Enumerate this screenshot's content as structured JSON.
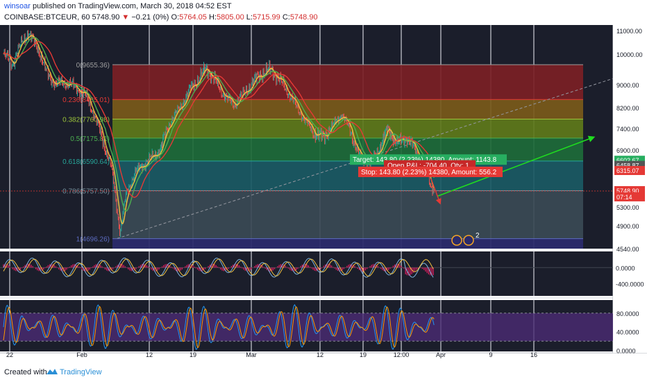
{
  "header": {
    "author": "winsoar",
    "published_text": "published on TradingView.com, March 30, 2018 04:52 EST",
    "symbol": "COINBASE:BTCEUR, 60",
    "last_price": "5748.90",
    "change_arrow": "▼",
    "change": "−0.21 (0%)",
    "open_label": "O:",
    "open": "5764.05",
    "high_label": "H:",
    "high": "5805.00",
    "low_label": "L:",
    "low": "5715.99",
    "close_label": "C:",
    "close": "5748.90"
  },
  "footer": {
    "created_with": "Created with",
    "brand": "TradingView"
  },
  "colors": {
    "up": "#26a69a",
    "down": "#ef5350",
    "arrow": "#1fdc1f",
    "target": "#27ae60",
    "stop": "#e53935",
    "price": "#e53935"
  },
  "chart_data": {
    "type": "line",
    "ylim": [
      4540,
      11000
    ],
    "price_ticks": [
      "11000.00",
      "10000.00",
      "9000.00",
      "8200.00",
      "7400.00",
      "6900.00",
      "5300.00",
      "4900.00",
      "4540.00"
    ],
    "price_tick_values": [
      11000,
      10000,
      9000,
      8200,
      7400,
      6900,
      5300,
      4900,
      4540
    ],
    "price_tags": [
      {
        "text": "6602.67",
        "value": 6602.67,
        "color": "#27ae60"
      },
      {
        "text": "6458.87",
        "value": 6458.87,
        "color": "#555555"
      },
      {
        "text": "6315.07",
        "value": 6315.07,
        "color": "#e53935"
      },
      {
        "text": "5748.90",
        "value": 5748.9,
        "color": "#e53935"
      },
      {
        "text": "07:14",
        "value": 5575,
        "color": "#e53935"
      }
    ],
    "x_ticks": [
      "22",
      "Feb",
      "12",
      "19",
      "Mar",
      "12",
      "19",
      "12:00",
      "Apr",
      "9",
      "16"
    ],
    "fib_levels": [
      {
        "label": "0(9655.36)",
        "ratio": 0,
        "value": 9655.36,
        "color": "#9e9e9e"
      },
      {
        "label": "0.236(8485.01)",
        "ratio": 0.236,
        "value": 8485.01,
        "color": "#e53935"
      },
      {
        "label": "0.382(7760.98)",
        "ratio": 0.382,
        "value": 7760.98,
        "color": "#9bc33a"
      },
      {
        "label": "0.5(7175.81)",
        "ratio": 0.5,
        "value": 7175.81,
        "color": "#4caf50"
      },
      {
        "label": "0.618(6590.64)",
        "ratio": 0.618,
        "value": 6590.64,
        "color": "#26a69a"
      },
      {
        "label": "0.786(5757.50)",
        "ratio": 0.786,
        "value": 5757.5,
        "color": "#78909c"
      },
      {
        "label": "1(4696.26)",
        "ratio": 1,
        "value": 4696.26,
        "color": "#5c6bc0"
      }
    ],
    "price_series": [
      [
        0,
        10000
      ],
      [
        3,
        9700
      ],
      [
        6,
        10500
      ],
      [
        8,
        10900
      ],
      [
        11,
        10300
      ],
      [
        14,
        9400
      ],
      [
        17,
        9000
      ],
      [
        19,
        9100
      ],
      [
        23,
        8950
      ],
      [
        27,
        8600
      ],
      [
        29,
        8050
      ],
      [
        31,
        7450
      ],
      [
        33,
        6950
      ],
      [
        35,
        6450
      ],
      [
        36,
        5900
      ],
      [
        37,
        5200
      ],
      [
        38,
        4760
      ],
      [
        40,
        5700
      ],
      [
        43,
        6300
      ],
      [
        47,
        6600
      ],
      [
        51,
        6900
      ],
      [
        55,
        7800
      ],
      [
        58,
        8300
      ],
      [
        61,
        8900
      ],
      [
        64,
        9250
      ],
      [
        66,
        9550
      ],
      [
        69,
        9100
      ],
      [
        72,
        8600
      ],
      [
        75,
        8300
      ],
      [
        79,
        8800
      ],
      [
        83,
        9300
      ],
      [
        87,
        9500
      ],
      [
        91,
        9000
      ],
      [
        95,
        8300
      ],
      [
        98,
        7700
      ],
      [
        101,
        7300
      ],
      [
        104,
        7200
      ],
      [
        107,
        7500
      ],
      [
        110,
        7950
      ],
      [
        113,
        7300
      ],
      [
        116,
        6700
      ],
      [
        119,
        6500
      ],
      [
        122,
        6900
      ],
      [
        125,
        7400
      ],
      [
        128,
        7050
      ],
      [
        131,
        7200
      ],
      [
        134,
        6900
      ],
      [
        137,
        6450
      ],
      [
        139,
        5900
      ],
      [
        140,
        5750
      ]
    ],
    "series_index_range": [
      0,
      140
    ],
    "projection_arrow": {
      "from_index": 141,
      "from_value": 5600,
      "to_index": 192,
      "to_value": 7200
    },
    "drop_arrow": {
      "from_index": 139,
      "from_value": 6100,
      "to_index": 142,
      "to_value": 5400
    },
    "trend_line": {
      "from_index": 37,
      "from_value": 4700,
      "to_index": 212,
      "to_value": 9650
    },
    "position": {
      "target": "Target: 143.80 (2.23%) 14380, Amount: 1143.8",
      "open": "Open P&L: -704.40, Qty: 1",
      "stop": "Stop: 143.80 (2.23%) 14380, Amount: 556.2"
    },
    "event_badge": "2",
    "osc1": {
      "ticks": [
        "0.0000",
        "-400.0000"
      ],
      "tick_values": [
        0,
        -400
      ],
      "ylim": [
        -700,
        400
      ]
    },
    "osc2": {
      "ticks": [
        "80.0000",
        "40.0000",
        "0.0000"
      ],
      "tick_values": [
        80,
        40,
        0
      ],
      "ylim": [
        -2,
        108
      ],
      "band": [
        20,
        80
      ]
    }
  }
}
